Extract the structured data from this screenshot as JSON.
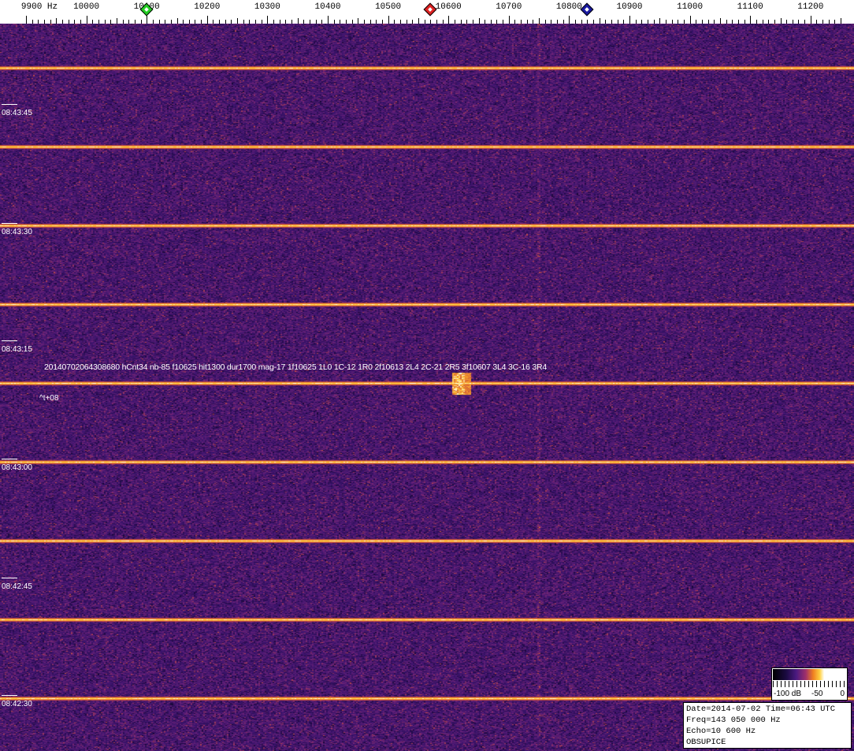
{
  "axis": {
    "unit_label": "9900 Hz",
    "freq_labels": [
      "10000",
      "10100",
      "10200",
      "10300",
      "10400",
      "10500",
      "10600",
      "10700",
      "10800",
      "10900",
      "11000",
      "11100",
      "11200"
    ],
    "start_hz": 9900,
    "end_hz": 11250
  },
  "markers": [
    {
      "freq_hz": 10100,
      "color": "#22cc22"
    },
    {
      "freq_hz": 10570,
      "color": "#dd2222"
    },
    {
      "freq_hz": 10830,
      "color": "#1a1aa0"
    }
  ],
  "time_labels": [
    "08:43:45",
    "08:43:30",
    "08:43:15",
    "08:43:00",
    "08:42:45",
    "08:42:30"
  ],
  "annotation": {
    "text": "20140702064308680 hCnt34 nb-85 f10625 hit1300 dur1700 mag-17 1f10625 1L0 1C-12 1R0 2f10613 2L4 2C-21 2R5 3f10607 3L4 3C-16 3R4",
    "offset": "^t+08"
  },
  "legend": {
    "min": "-100 dB",
    "mid": "-50",
    "max": "0"
  },
  "info": {
    "line1": "Date=2014-07-02 Time=06:43 UTC",
    "line2": "Freq=143 050 000 Hz",
    "line3": "Echo=10 600 Hz",
    "line4": "OBSUPICE"
  },
  "colors": {
    "background": "#4a1a70",
    "carrier": "#ffcc33"
  }
}
